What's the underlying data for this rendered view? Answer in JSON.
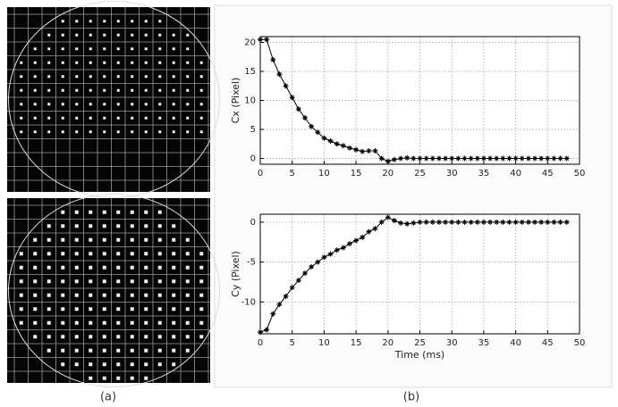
{
  "panel_labels": [
    "(a)",
    "(b)"
  ],
  "chart_data": [
    {
      "type": "line",
      "ylabel": "Cx (Pixel)",
      "x": [
        0,
        1,
        2,
        3,
        4,
        5,
        6,
        7,
        8,
        9,
        10,
        11,
        12,
        13,
        14,
        15,
        16,
        17,
        18,
        19,
        20,
        21,
        22,
        23,
        24,
        25,
        26,
        27,
        28,
        29,
        30,
        31,
        32,
        33,
        34,
        35,
        36,
        37,
        38,
        39,
        40,
        41,
        42,
        43,
        44,
        45,
        46,
        47,
        48
      ],
      "series": [
        {
          "color": "#000000",
          "values": [
            20.5,
            20.5,
            17,
            14.5,
            12.5,
            10.5,
            8.5,
            7,
            5.5,
            4.5,
            3.5,
            3,
            2.5,
            2.2,
            1.8,
            1.5,
            1.2,
            1.3,
            1.3,
            0,
            -0.5,
            -0.2,
            0,
            0.1,
            0,
            0,
            0,
            0,
            0,
            0,
            0,
            0,
            0,
            0,
            0,
            0,
            0,
            0,
            0,
            0,
            0,
            0,
            0,
            0,
            0,
            0,
            0,
            0,
            0
          ]
        }
      ],
      "xlim": [
        0,
        50
      ],
      "xticks": [
        0,
        5,
        10,
        15,
        20,
        25,
        30,
        35,
        40,
        45,
        50
      ],
      "ylim": [
        -1,
        21
      ],
      "yticks": [
        0,
        5,
        10,
        15,
        20
      ],
      "grid": true
    },
    {
      "type": "line",
      "ylabel": "Cy (Pixel)",
      "xlabel": "Time (ms)",
      "x": [
        0,
        1,
        2,
        3,
        4,
        5,
        6,
        7,
        8,
        9,
        10,
        11,
        12,
        13,
        14,
        15,
        16,
        17,
        18,
        19,
        20,
        21,
        22,
        23,
        24,
        25,
        26,
        27,
        28,
        29,
        30,
        31,
        32,
        33,
        34,
        35,
        36,
        37,
        38,
        39,
        40,
        41,
        42,
        43,
        44,
        45,
        46,
        47,
        48
      ],
      "series": [
        {
          "color": "#000000",
          "values": [
            -13.8,
            -13.5,
            -11.5,
            -10.3,
            -9.3,
            -8.2,
            -7.3,
            -6.4,
            -5.6,
            -5,
            -4.4,
            -4,
            -3.5,
            -3.2,
            -2.7,
            -2.3,
            -1.9,
            -1.2,
            -0.8,
            0,
            0.6,
            0.2,
            -0.1,
            -0.2,
            -0.1,
            0,
            0,
            0,
            0,
            0,
            0,
            0,
            0,
            0,
            0,
            0,
            0,
            0,
            0,
            0,
            0,
            0,
            0,
            0,
            0,
            0,
            0,
            0,
            0
          ]
        }
      ],
      "xlim": [
        0,
        50
      ],
      "xticks": [
        0,
        5,
        10,
        15,
        20,
        25,
        30,
        35,
        40,
        45,
        50
      ],
      "ylim": [
        -14,
        1
      ],
      "yticks": [
        0,
        -5,
        -10
      ],
      "grid": true
    }
  ]
}
